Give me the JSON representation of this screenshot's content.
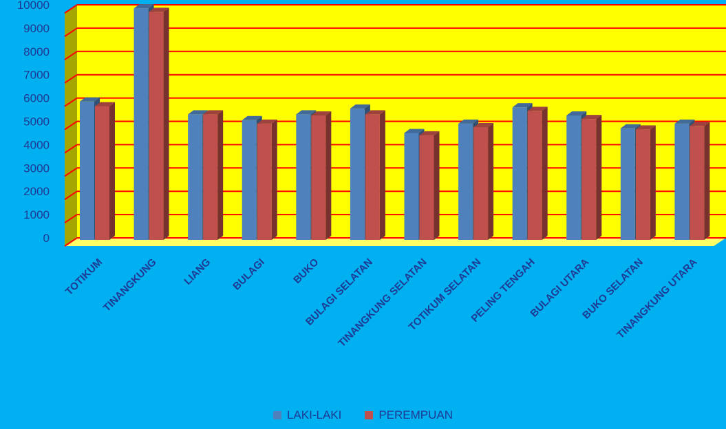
{
  "chart_data": {
    "type": "bar",
    "title": "",
    "xlabel": "",
    "ylabel": "",
    "ylim": [
      0,
      10000
    ],
    "yticks": [
      0,
      1000,
      2000,
      3000,
      4000,
      5000,
      6000,
      7000,
      8000,
      9000,
      10000
    ],
    "grid": true,
    "legend_position": "bottom",
    "categories": [
      "TOTIKUM",
      "TINANGKUNG",
      "LIANG",
      "BULAGI",
      "BUKO",
      "BULAGI SELATAN",
      "TINANGKUNG SELATAN",
      "TOTIKUM SELATAN",
      "PELING TENGAH",
      "BULAGI UTARA",
      "BUKO SELATAN",
      "TINANGKUNG UTARA"
    ],
    "series": [
      {
        "name": "LAKI-LAKI",
        "color": "#4F81BD",
        "values": [
          5850,
          9850,
          5300,
          5050,
          5300,
          5550,
          4500,
          4900,
          5600,
          5250,
          4700,
          4900
        ]
      },
      {
        "name": "PEREMPUAN",
        "color": "#C0504D",
        "values": [
          5650,
          9700,
          5300,
          4900,
          5250,
          5300,
          4400,
          4750,
          5450,
          5100,
          4650,
          4800
        ]
      }
    ],
    "colors": {
      "page_background": "#00B0F0",
      "plot_background": "#FFFF00",
      "gridline": "#FF0000",
      "side_wall": "#A6A600",
      "floor": "#FFFF66",
      "axis_text": "#1F3A93"
    }
  }
}
